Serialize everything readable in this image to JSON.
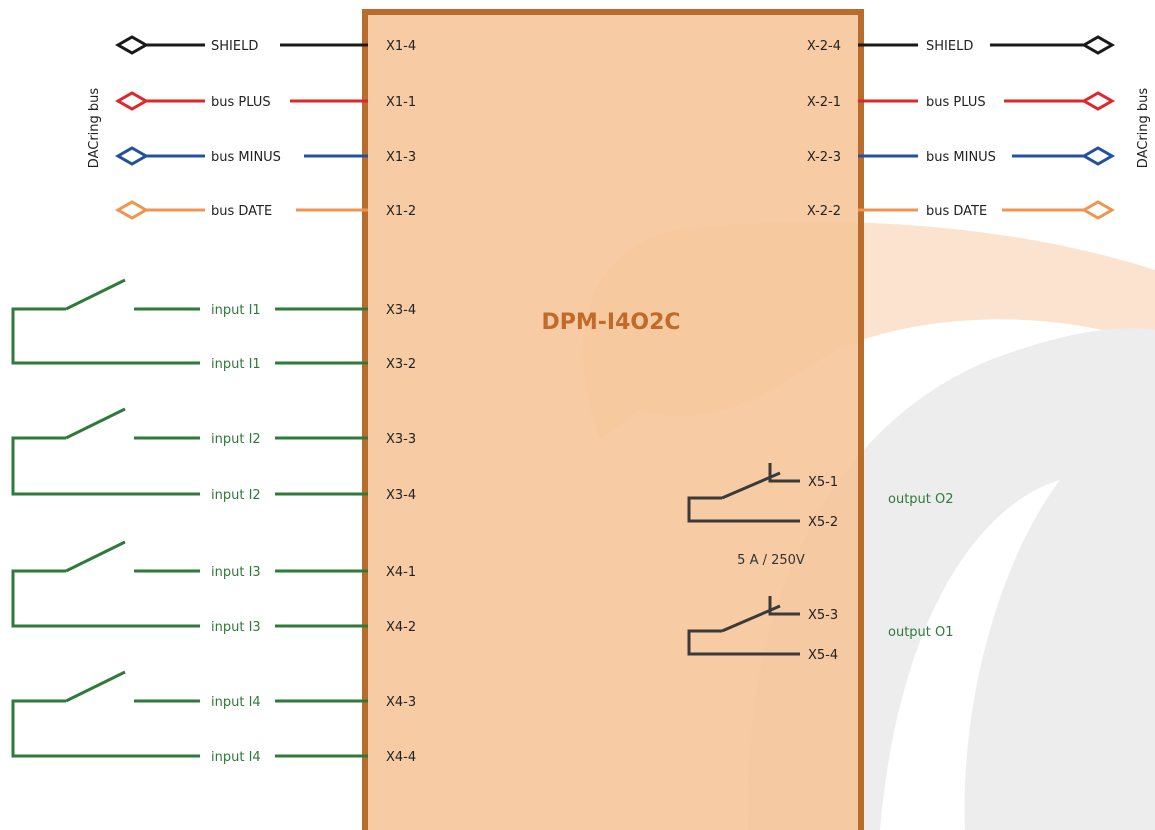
{
  "device": {
    "name": "DPM-I4O2C",
    "rating": "5 A / 250V"
  },
  "bus_label": "DACring bus",
  "colors": {
    "device_fill": "#f6c597",
    "device_border": "#b96d2c",
    "device_title": "#c06a2b",
    "shield": "#1a1a1a",
    "plus": "#e0262b",
    "minus": "#2450a0",
    "date": "#f0954f",
    "input_green": "#2f7a3a",
    "relay": "#3a3a3a",
    "watermark_orange": "#fbe3cf",
    "watermark_gray": "#ededee"
  },
  "bus_rows": [
    {
      "signal": "SHIELD",
      "left_terminal": "X1-4",
      "right_terminal": "X-2-4",
      "color_key": "shield"
    },
    {
      "signal": "bus PLUS",
      "left_terminal": "X1-1",
      "right_terminal": "X-2-1",
      "color_key": "plus"
    },
    {
      "signal": "bus MINUS",
      "left_terminal": "X1-3",
      "right_terminal": "X-2-3",
      "color_key": "minus"
    },
    {
      "signal": "bus DATE",
      "left_terminal": "X1-2",
      "right_terminal": "X-2-2",
      "color_key": "date"
    }
  ],
  "inputs": [
    {
      "label_a": "input I1",
      "label_b": "input I1",
      "terminal_a": "X3-4",
      "terminal_b": "X3-2"
    },
    {
      "label_a": "input I2",
      "label_b": "input I2",
      "terminal_a": "X3-3",
      "terminal_b": "X3-4"
    },
    {
      "label_a": "input I3",
      "label_b": "input I3",
      "terminal_a": "X4-1",
      "terminal_b": "X4-2"
    },
    {
      "label_a": "input I4",
      "label_b": "input I4",
      "terminal_a": "X4-3",
      "terminal_b": "X4-4"
    }
  ],
  "outputs": [
    {
      "label": "output O2",
      "terminal_a": "X5-1",
      "terminal_b": "X5-2"
    },
    {
      "label": "output O1",
      "terminal_a": "X5-3",
      "terminal_b": "X5-4"
    }
  ]
}
